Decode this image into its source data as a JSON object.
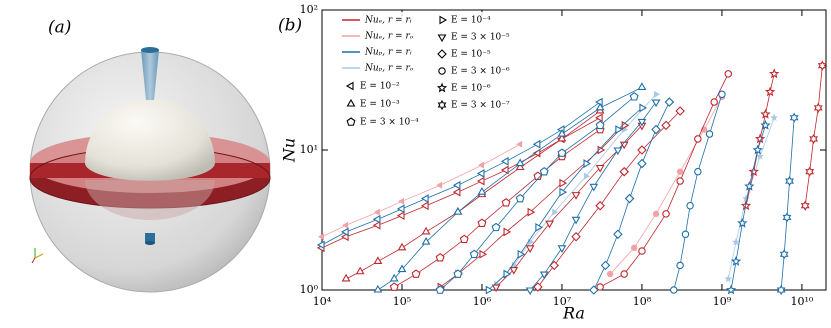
{
  "chart_data": {
    "type": "scatter",
    "panel_labels": [
      "(a)",
      "(b)"
    ],
    "x_label": "Ra",
    "y_label": "Nu",
    "log_x": true,
    "log_y": true,
    "xlim": [
      10000,
      20000000000
    ],
    "ylim": [
      1,
      100
    ],
    "xticks": [
      {
        "value": 10000,
        "label": "10⁴"
      },
      {
        "value": 100000,
        "label": "10⁵"
      },
      {
        "value": 1000000,
        "label": "10⁶"
      },
      {
        "value": 10000000,
        "label": "10⁷"
      },
      {
        "value": 100000000,
        "label": "10⁸"
      },
      {
        "value": 1000000000,
        "label": "10⁹"
      },
      {
        "value": 10000000000,
        "label": "10¹⁰"
      }
    ],
    "yticks": [
      {
        "value": 1,
        "label": "10⁰"
      },
      {
        "value": 10,
        "label": "10¹"
      },
      {
        "value": 100,
        "label": "10²"
      }
    ],
    "legend_lines": [
      {
        "name": "Nuₑ,  r = rᵢ",
        "color": "#c0272d"
      },
      {
        "name": "Nuₑ,  r = rₒ",
        "color": "#f2a2a6"
      },
      {
        "name": "Nuₚ,  r = rᵢ",
        "color": "#1f6fa8"
      },
      {
        "name": "Nuₚ,  r = rₒ",
        "color": "#a9c9e6"
      }
    ],
    "legend_markers": [
      {
        "name": "E = 10⁻²",
        "marker": "triangle-left"
      },
      {
        "name": "E = 10⁻³",
        "marker": "triangle-up"
      },
      {
        "name": "E = 3 × 10⁻⁴",
        "marker": "pentagon"
      },
      {
        "name": "E = 10⁻⁴",
        "marker": "triangle-right"
      },
      {
        "name": "E = 3 × 10⁻⁵",
        "marker": "triangle-down"
      },
      {
        "name": "E = 10⁻⁵",
        "marker": "diamond"
      },
      {
        "name": "E = 3 × 10⁻⁶",
        "marker": "circle"
      },
      {
        "name": "E = 10⁻⁶",
        "marker": "star"
      },
      {
        "name": "E = 3 × 10⁻⁷",
        "marker": "hexagram"
      }
    ],
    "series": [
      {
        "color": "#f2a2a6",
        "marker": "triangle-left",
        "filled": true,
        "x": [
          10000,
          20000,
          50000,
          100000,
          300000,
          1000000,
          3000000
        ],
        "values": [
          2.4,
          2.9,
          3.6,
          4.3,
          5.6,
          7.8,
          11
        ]
      },
      {
        "color": "#a9c9e6",
        "marker": "triangle-right",
        "filled": true,
        "x": [
          1500000,
          2500000,
          4000000,
          8000000,
          20000000,
          60000000,
          150000000
        ],
        "values": [
          1.1,
          1.5,
          2.2,
          3.6,
          6.5,
          14,
          25
        ]
      },
      {
        "color": "#f2a2a6",
        "marker": "circle",
        "filled": true,
        "x": [
          40000000,
          80000000,
          150000000,
          300000000,
          600000000,
          1000000000
        ],
        "values": [
          1.3,
          2.0,
          3.5,
          7,
          14,
          24
        ]
      },
      {
        "color": "#a9c9e6",
        "marker": "star",
        "filled": true,
        "x": [
          1200000000,
          1500000000,
          2000000000,
          3000000000,
          4500000000
        ],
        "values": [
          1.2,
          2.2,
          4.5,
          9,
          17
        ]
      },
      {
        "color": "#c0272d",
        "marker": "triangle-left",
        "filled": false,
        "x": [
          10000,
          20000,
          50000,
          100000,
          200000,
          500000,
          1000000,
          2000000,
          5000000,
          10000000,
          30000000
        ],
        "values": [
          2.0,
          2.4,
          2.9,
          3.4,
          4.0,
          5.0,
          6.0,
          7.2,
          9.5,
          12,
          17
        ]
      },
      {
        "color": "#c0272d",
        "marker": "triangle-up",
        "filled": false,
        "x": [
          20000,
          30000,
          50000,
          100000,
          200000,
          500000,
          1000000,
          3000000,
          10000000,
          30000000
        ],
        "values": [
          1.2,
          1.35,
          1.6,
          2.0,
          2.6,
          3.6,
          4.8,
          7.5,
          12,
          19
        ]
      },
      {
        "color": "#c0272d",
        "marker": "pentagon",
        "filled": false,
        "x": [
          80000,
          150000,
          300000,
          600000,
          1000000,
          2000000,
          5000000,
          10000000,
          30000000
        ],
        "values": [
          1.05,
          1.3,
          1.7,
          2.3,
          3.0,
          4.2,
          6.5,
          9,
          14
        ]
      },
      {
        "color": "#c0272d",
        "marker": "triangle-right",
        "filled": false,
        "x": [
          300000,
          500000,
          1000000,
          2000000,
          4000000,
          10000000,
          30000000,
          60000000
        ],
        "values": [
          1.05,
          1.3,
          1.8,
          2.6,
          3.6,
          5.8,
          10,
          15
        ]
      },
      {
        "color": "#c0272d",
        "marker": "triangle-down",
        "filled": false,
        "x": [
          1500000,
          2500000,
          4000000,
          7000000,
          15000000,
          30000000,
          60000000,
          100000000
        ],
        "values": [
          1.05,
          1.4,
          2.0,
          3.0,
          4.8,
          7.5,
          11,
          15
        ]
      },
      {
        "color": "#c0272d",
        "marker": "diamond",
        "filled": false,
        "x": [
          5000000,
          8000000,
          15000000,
          30000000,
          60000000,
          100000000,
          200000000,
          300000000
        ],
        "values": [
          1.05,
          1.5,
          2.4,
          4,
          7,
          10,
          15,
          19
        ]
      },
      {
        "color": "#c0272d",
        "marker": "circle",
        "filled": false,
        "x": [
          30000000,
          60000000,
          100000000,
          200000000,
          300000000,
          500000000,
          800000000,
          1200000000
        ],
        "values": [
          1.05,
          1.3,
          1.9,
          3.5,
          6,
          12,
          22,
          35
        ]
      },
      {
        "color": "#c0272d",
        "marker": "star",
        "filled": false,
        "x": [
          2000000000,
          2500000000,
          3000000000,
          3500000000,
          4000000000,
          4500000000
        ],
        "values": [
          4,
          7,
          12,
          18,
          26,
          35
        ]
      },
      {
        "color": "#c0272d",
        "marker": "hexagram",
        "filled": false,
        "x": [
          11000000000,
          12500000000,
          14000000000,
          16000000000,
          18000000000
        ],
        "values": [
          4,
          7,
          12,
          20,
          40
        ]
      },
      {
        "color": "#1f6fa8",
        "marker": "triangle-left",
        "filled": false,
        "x": [
          10000,
          20000,
          50000,
          100000,
          200000,
          500000,
          1000000,
          2000000,
          5000000,
          10000000,
          30000000
        ],
        "values": [
          2.1,
          2.6,
          3.2,
          3.8,
          4.5,
          5.6,
          6.8,
          8.3,
          11,
          14,
          22
        ]
      },
      {
        "color": "#1f6fa8",
        "marker": "triangle-up",
        "filled": false,
        "x": [
          50000,
          80000,
          100000,
          200000,
          500000,
          1000000,
          3000000,
          10000000,
          30000000,
          100000000
        ],
        "values": [
          1.0,
          1.2,
          1.4,
          2.2,
          3.6,
          5.0,
          8,
          13,
          20,
          28
        ]
      },
      {
        "color": "#1f6fa8",
        "marker": "pentagon",
        "filled": false,
        "x": [
          300000,
          500000,
          800000,
          1500000,
          3000000,
          6000000,
          10000000,
          30000000,
          80000000
        ],
        "values": [
          1.0,
          1.3,
          1.8,
          2.8,
          4.5,
          7,
          9.5,
          15,
          24
        ]
      },
      {
        "color": "#1f6fa8",
        "marker": "triangle-right",
        "filled": false,
        "x": [
          1200000,
          2000000,
          3000000,
          5000000,
          10000000,
          20000000,
          50000000,
          100000000
        ],
        "values": [
          1.0,
          1.3,
          1.8,
          2.8,
          5,
          8,
          14,
          20
        ]
      },
      {
        "color": "#1f6fa8",
        "marker": "triangle-down",
        "filled": false,
        "x": [
          4000000,
          6000000,
          10000000,
          15000000,
          25000000,
          50000000,
          100000000,
          150000000
        ],
        "values": [
          1.0,
          1.3,
          2.0,
          3.2,
          5.5,
          10,
          16,
          22
        ]
      },
      {
        "color": "#1f6fa8",
        "marker": "diamond",
        "filled": false,
        "x": [
          25000000,
          35000000,
          50000000,
          70000000,
          100000000,
          150000000,
          220000000
        ],
        "values": [
          1.0,
          1.5,
          2.5,
          4.5,
          8,
          14,
          22
        ]
      },
      {
        "color": "#1f6fa8",
        "marker": "circle",
        "filled": false,
        "x": [
          250000000,
          300000000,
          350000000,
          400000000,
          500000000,
          700000000,
          1000000000
        ],
        "values": [
          1.0,
          1.5,
          2.5,
          4,
          7,
          13,
          25
        ]
      },
      {
        "color": "#1f6fa8",
        "marker": "star",
        "filled": false,
        "x": [
          1300000000,
          1500000000,
          1800000000,
          2200000000,
          2800000000,
          3500000000
        ],
        "values": [
          1.0,
          1.6,
          3,
          5.5,
          10,
          15
        ]
      },
      {
        "color": "#1f6fa8",
        "marker": "hexagram",
        "filled": false,
        "x": [
          5500000000,
          6000000000,
          6500000000,
          7000000000,
          8000000000
        ],
        "values": [
          1.0,
          1.8,
          3.3,
          6,
          17
        ]
      }
    ]
  }
}
